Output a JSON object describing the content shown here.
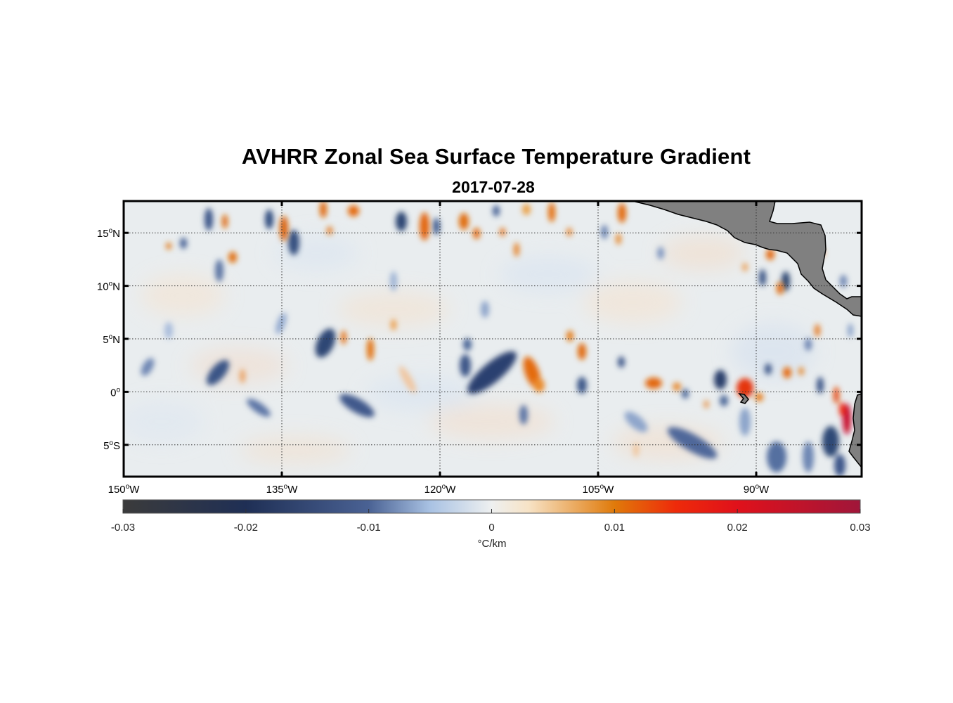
{
  "figure": {
    "title": "AVHRR Zonal Sea Surface Temperature Gradient",
    "subtitle": "2017-07-28"
  },
  "map": {
    "lon_range": [
      -150,
      -80
    ],
    "lat_range": [
      -8,
      18
    ],
    "lon_ticks": [
      {
        "value": -150,
        "deg": "150",
        "hemi": "W"
      },
      {
        "value": -135,
        "deg": "135",
        "hemi": "W"
      },
      {
        "value": -120,
        "deg": "120",
        "hemi": "W"
      },
      {
        "value": -105,
        "deg": "105",
        "hemi": "W"
      },
      {
        "value": -90,
        "deg": "90",
        "hemi": "W"
      }
    ],
    "lat_ticks": [
      {
        "value": 15,
        "deg": "15",
        "hemi": "N"
      },
      {
        "value": 10,
        "deg": "10",
        "hemi": "N"
      },
      {
        "value": 5,
        "deg": "5",
        "hemi": "N"
      },
      {
        "value": 0,
        "deg": "0",
        "hemi": ""
      },
      {
        "value": -5,
        "deg": "5",
        "hemi": "S"
      }
    ],
    "grid": true,
    "land_color": "#808080",
    "colors": {
      "neutral": "#e8ecef",
      "negative": "#2c4470",
      "positive": "#e0620a",
      "extreme_positive": "#c8102e"
    }
  },
  "colorbar": {
    "label": "°C/km",
    "ticks": [
      "-0.03",
      "-0.02",
      "-0.01",
      "0",
      "0.01",
      "0.02",
      "0.03"
    ],
    "range": [
      -0.03,
      0.03
    ],
    "stops": [
      {
        "value": -0.03,
        "color": "#3b3b3b"
      },
      {
        "value": -0.02,
        "color": "#1f2f55"
      },
      {
        "value": -0.01,
        "color": "#4a6294"
      },
      {
        "value": -0.005,
        "color": "#a9c2e3"
      },
      {
        "value": 0,
        "color": "#eef0f0"
      },
      {
        "value": 0.003,
        "color": "#f7e3c6"
      },
      {
        "value": 0.01,
        "color": "#e07a0a"
      },
      {
        "value": 0.015,
        "color": "#ee2a0a"
      },
      {
        "value": 0.02,
        "color": "#e0111b"
      },
      {
        "value": 0.03,
        "color": "#a0163a"
      }
    ]
  }
}
